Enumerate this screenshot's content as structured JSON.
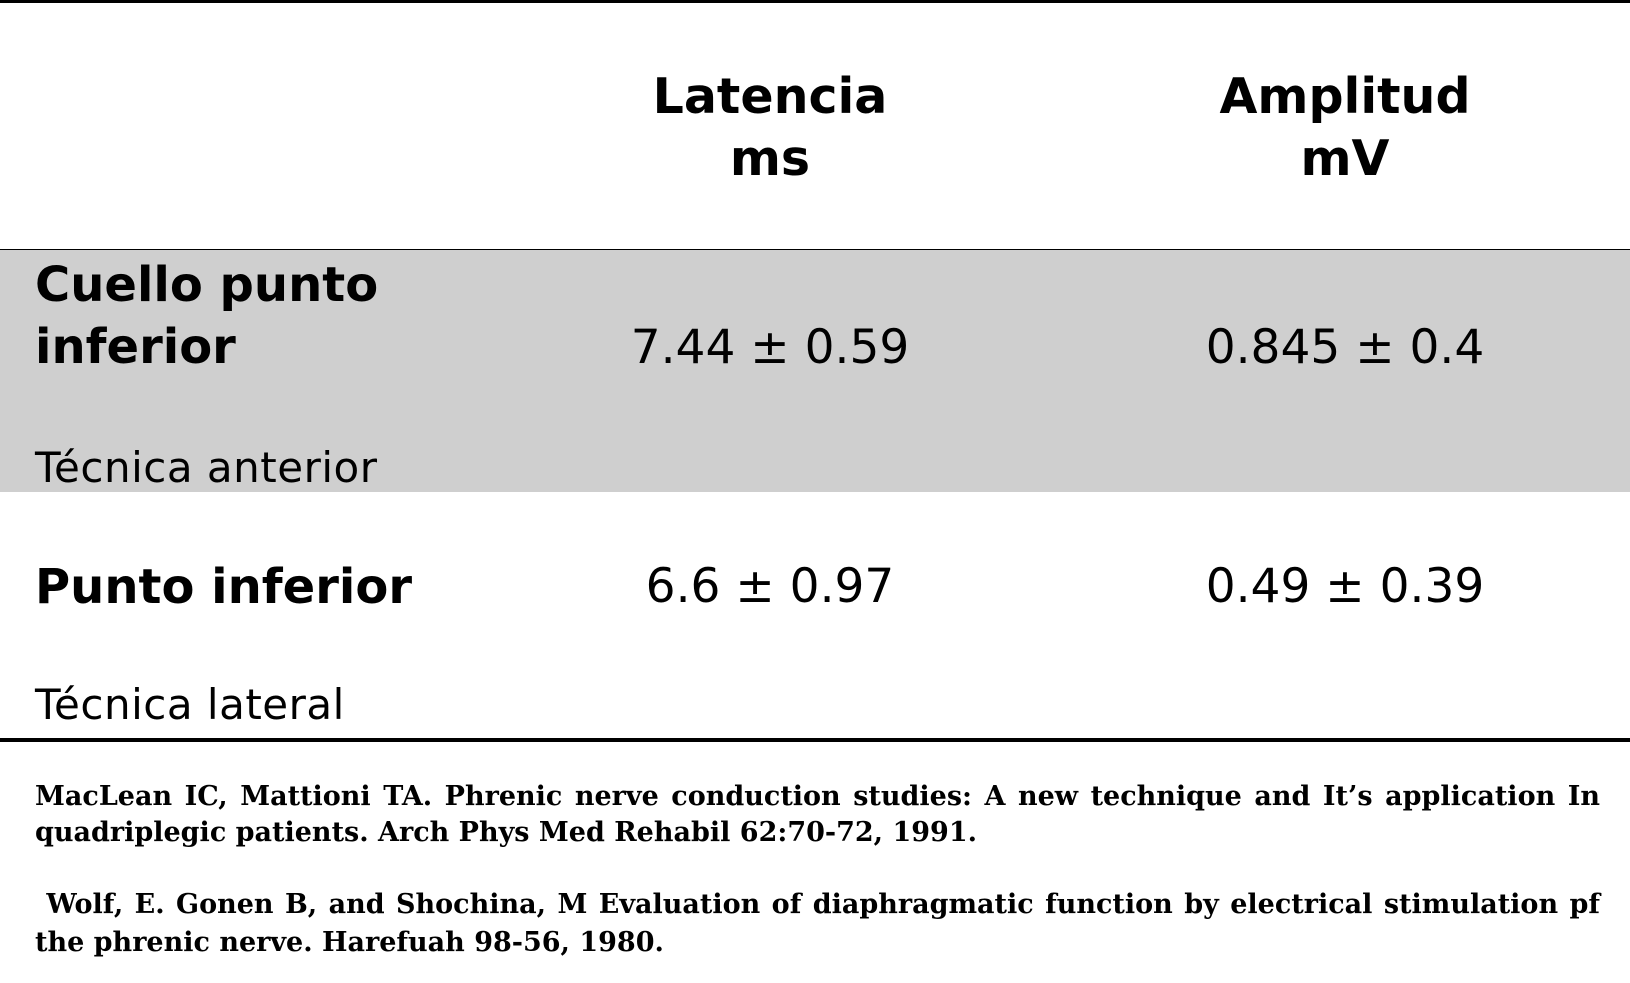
{
  "table": {
    "headers": [
      {
        "line1": "Latencia",
        "line2": "ms"
      },
      {
        "line1": "Amplitud",
        "line2": "mV"
      }
    ],
    "rows": [
      {
        "label_line1": "Cuello punto",
        "label_line2": "inferior",
        "technique": "Técnica anterior",
        "latency": "7.44 ± 0.59",
        "amplitude": "0.845 ± 0.4"
      },
      {
        "label_line1": "Punto inferior",
        "technique": "Técnica lateral",
        "latency": "6.6 ± 0.97",
        "amplitude": "0.49 ± 0.39"
      }
    ],
    "shaded_row_color": "#cfcfcf"
  },
  "references": [
    {
      "text": "MacLean IC, Mattioni TA. Phrenic nerve conduction studies: A new technique and It’s application In quadriplegic patients. Arch Phys Med Rehabil 62:70-72, 1991."
    },
    {
      "bullet": "⁦",
      "text": "Wolf, E. Gonen B, and Shochina, M Evaluation of diaphragmatic function by electrical stimulation pf the phrenic nerve. Harefuah 98-56, 1980."
    }
  ]
}
